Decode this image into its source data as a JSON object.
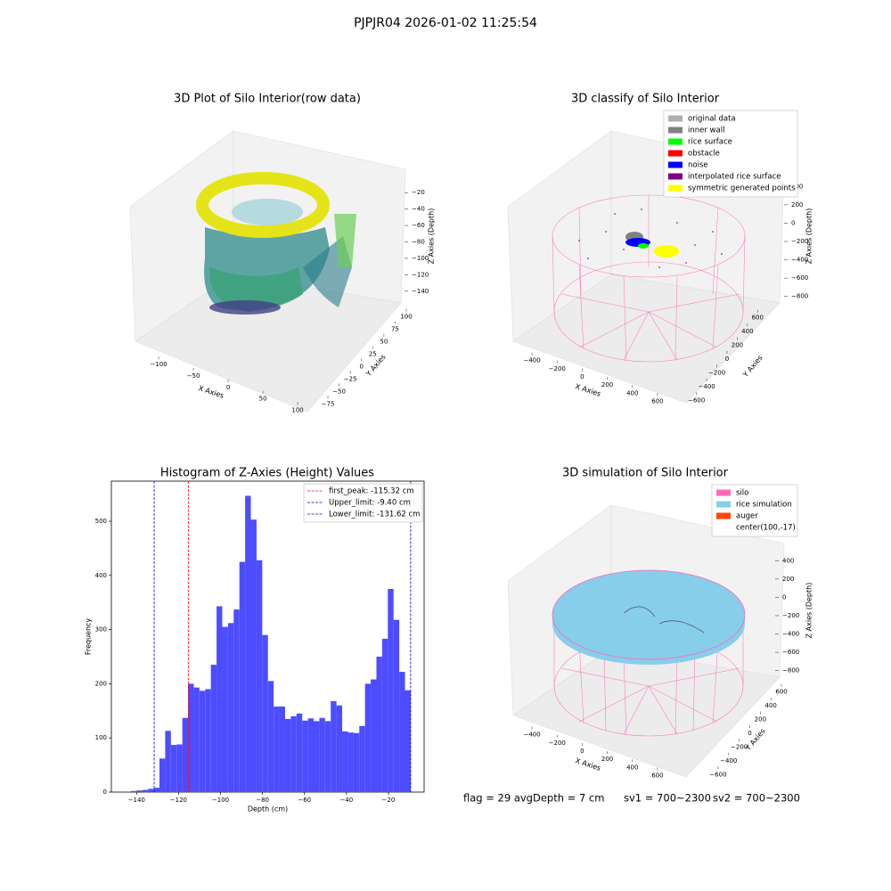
{
  "title": "PJPJR04 2026-01-02 11:25:54",
  "chart_data": [
    {
      "type": "scatter3d",
      "title": "3D Plot of Silo Interior(row data)",
      "xlabel": "X Axies",
      "ylabel": "Y Axies",
      "zlabel": "Z Axies (Depth)",
      "xlim": [
        -136,
        114
      ],
      "ylim": [
        -85,
        110
      ],
      "zlim": [
        -150,
        -10
      ],
      "xticks": [
        {
          "value": -100,
          "label": "−100"
        },
        {
          "value": -50,
          "label": "−50"
        },
        0,
        50,
        100
      ],
      "yticks": [
        {
          "value": -75,
          "label": "−75"
        },
        {
          "value": -50,
          "label": "−50"
        },
        {
          "value": -25,
          "label": "−25"
        },
        0,
        25,
        50,
        75,
        100
      ],
      "zticks": [
        {
          "value": -140,
          "label": "−140"
        },
        {
          "value": -120,
          "label": "−120"
        },
        {
          "value": -100,
          "label": "−100"
        },
        {
          "value": -80,
          "label": "−80"
        },
        {
          "value": -60,
          "label": "−60"
        },
        {
          "value": -40,
          "label": "−40"
        },
        {
          "value": -20,
          "label": "−20"
        }
      ]
    },
    {
      "type": "scatter3d",
      "title": "3D classify of Silo Interior",
      "xlabel": "X Axies",
      "ylabel": "Y Axies",
      "zlabel": "Z Axies (Depth)",
      "xlim": [
        -500,
        700
      ],
      "ylim": [
        -700,
        700
      ],
      "zlim": [
        -900,
        500
      ],
      "xticks": [
        {
          "value": -400,
          "label": "−400"
        },
        {
          "value": -200,
          "label": "−200"
        },
        0,
        200,
        400,
        600
      ],
      "yticks": [
        {
          "value": -600,
          "label": "−600"
        },
        {
          "value": -400,
          "label": "−400"
        },
        {
          "value": -200,
          "label": "−200"
        },
        0,
        200,
        400,
        600
      ],
      "zticks": [
        {
          "value": -800,
          "label": "−800"
        },
        {
          "value": -600,
          "label": "−600"
        },
        {
          "value": -400,
          "label": "−400"
        },
        {
          "value": -200,
          "label": "−200"
        },
        0,
        200,
        400
      ],
      "legend": [
        {
          "name": "original data",
          "color": "#b0b0b0"
        },
        {
          "name": "inner wall",
          "color": "#808080"
        },
        {
          "name": "rice surface",
          "color": "#00ff00"
        },
        {
          "name": "obstacle",
          "color": "#ff0000"
        },
        {
          "name": "noise",
          "color": "#0000ff"
        },
        {
          "name": "interpolated rice surface",
          "color": "#800080"
        },
        {
          "name": "symmetric generated points",
          "color": "#ffff00"
        }
      ]
    },
    {
      "type": "histogram",
      "title": "Histogram of Z-Axies (Height) Values",
      "xlabel": "Depth (cm)",
      "ylabel": "Frequency",
      "color": "#4d4dff",
      "bins": [
        -145.4,
        -142.68,
        -139.96,
        -137.24,
        -134.52,
        -131.8,
        -129.08,
        -126.36,
        -123.64,
        -120.92,
        -118.2,
        -115.48,
        -112.76,
        -110.04,
        -107.32,
        -104.6,
        -101.88,
        -99.16,
        -96.44,
        -93.72,
        -91.0,
        -88.28,
        -85.56,
        -82.84,
        -80.12,
        -77.4,
        -74.68,
        -71.96,
        -69.24,
        -66.52,
        -63.8,
        -61.08,
        -58.36,
        -55.64,
        -52.92,
        -50.2,
        -47.48,
        -44.76,
        -42.04,
        -39.32,
        -36.6,
        -33.88,
        -31.16,
        -28.44,
        -25.72,
        -23.0,
        -20.28,
        -17.56,
        -14.84,
        -12.12,
        -9.4
      ],
      "values": [
        1,
        2,
        3,
        4,
        6,
        8,
        62,
        113,
        87,
        88,
        137,
        200,
        193,
        187,
        190,
        235,
        343,
        305,
        312,
        337,
        425,
        547,
        503,
        428,
        290,
        205,
        158,
        158,
        135,
        140,
        145,
        132,
        136,
        131,
        137,
        131,
        168,
        160,
        112,
        110,
        109,
        122,
        200,
        208,
        250,
        283,
        375,
        318,
        222,
        188
      ],
      "xlim": [
        -152,
        -3
      ],
      "ylim": [
        0,
        574
      ],
      "xticks": [
        {
          "value": -140,
          "label": "−140"
        },
        {
          "value": -120,
          "label": "−120"
        },
        {
          "value": -100,
          "label": "−100"
        },
        {
          "value": -80,
          "label": "−80"
        },
        {
          "value": -60,
          "label": "−60"
        },
        {
          "value": -40,
          "label": "−40"
        },
        {
          "value": -20,
          "label": "−20"
        }
      ],
      "yticks": [
        0,
        100,
        200,
        300,
        400,
        500
      ],
      "lines": [
        {
          "name": "first_peak: -115.32 cm",
          "value": -115.32,
          "color": "#ff0000"
        },
        {
          "name": "Upper_limit: -9.40 cm",
          "value": -9.4,
          "color": "#0000cc"
        },
        {
          "name": "Lower_limit: -131.62 cm",
          "value": -131.62,
          "color": "#0000cc"
        }
      ],
      "legend_position": "upper right"
    },
    {
      "type": "scatter3d",
      "title": "3D simulation of Silo Interior",
      "xlabel": "X Axies",
      "ylabel": "Y Axies",
      "zlabel": "Z Axies (Depth)",
      "xlim": [
        -500,
        700
      ],
      "ylim": [
        -700,
        700
      ],
      "zlim": [
        -900,
        500
      ],
      "xticks": [
        {
          "value": -400,
          "label": "−400"
        },
        {
          "value": -200,
          "label": "−200"
        },
        0,
        200,
        400,
        600
      ],
      "yticks": [
        {
          "value": -600,
          "label": "−600"
        },
        {
          "value": -400,
          "label": "−400"
        },
        {
          "value": -200,
          "label": "−200"
        },
        0,
        200,
        400,
        600
      ],
      "zticks": [
        {
          "value": -800,
          "label": "−800"
        },
        {
          "value": -600,
          "label": "−600"
        },
        {
          "value": -400,
          "label": "−400"
        },
        {
          "value": -200,
          "label": "−200"
        },
        0,
        200,
        400
      ],
      "legend": [
        {
          "name": "silo",
          "color": "#ff69b4"
        },
        {
          "name": "rice simulation",
          "color": "#87ceeb"
        },
        {
          "name": "auger",
          "color": "#ff4500"
        },
        {
          "name": "center(100,-17)",
          "color": null
        }
      ]
    }
  ],
  "footer": [
    "flag = 29  avgDepth = 7 cm",
    "sv1 = 700~2300",
    "sv2 = 700~2300"
  ]
}
